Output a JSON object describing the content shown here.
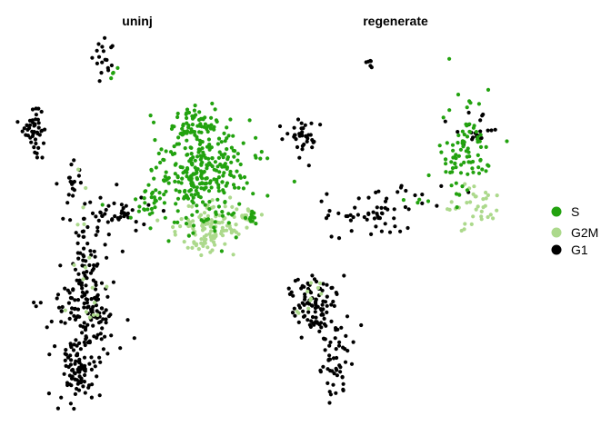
{
  "chart_data": {
    "type": "scatter",
    "title": "",
    "xlabel": "",
    "ylabel": "",
    "axes": "none",
    "grid": false,
    "legend_position": "right",
    "facets": [
      "uninj",
      "regenerate"
    ],
    "series": [
      {
        "name": "S",
        "color": "#22a20f"
      },
      {
        "name": "G2M",
        "color": "#acd98c"
      },
      {
        "name": "G1",
        "color": "#000000"
      }
    ],
    "clusters": [
      {
        "facet": "uninj",
        "series": "G1",
        "cx": 116,
        "cy": 65,
        "sx": 5,
        "sy": 12,
        "n": 18
      },
      {
        "facet": "uninj",
        "series": "S",
        "cx": 127,
        "cy": 75,
        "sx": 4,
        "sy": 6,
        "n": 4
      },
      {
        "facet": "uninj",
        "series": "G1",
        "cx": 38,
        "cy": 147,
        "sx": 7,
        "sy": 12,
        "n": 45
      },
      {
        "facet": "uninj",
        "series": "G1",
        "cx": 80,
        "cy": 200,
        "sx": 6,
        "sy": 12,
        "n": 18
      },
      {
        "facet": "uninj",
        "series": "G1",
        "cx": 125,
        "cy": 235,
        "sx": 20,
        "sy": 12,
        "n": 45
      },
      {
        "facet": "uninj",
        "series": "G1",
        "cx": 95,
        "cy": 290,
        "sx": 14,
        "sy": 25,
        "n": 55
      },
      {
        "facet": "uninj",
        "series": "G1",
        "cx": 92,
        "cy": 345,
        "sx": 18,
        "sy": 22,
        "n": 110
      },
      {
        "facet": "uninj",
        "series": "G1",
        "cx": 85,
        "cy": 405,
        "sx": 12,
        "sy": 20,
        "n": 90
      },
      {
        "facet": "uninj",
        "series": "G1",
        "cx": 40,
        "cy": 335,
        "sx": 2,
        "sy": 4,
        "n": 3
      },
      {
        "facet": "uninj",
        "series": "S",
        "cx": 220,
        "cy": 190,
        "sx": 28,
        "sy": 30,
        "n": 300
      },
      {
        "facet": "uninj",
        "series": "S",
        "cx": 215,
        "cy": 140,
        "sx": 15,
        "sy": 10,
        "n": 60
      },
      {
        "facet": "uninj",
        "series": "S",
        "cx": 160,
        "cy": 228,
        "sx": 8,
        "sy": 10,
        "n": 20
      },
      {
        "facet": "uninj",
        "series": "G2M",
        "cx": 232,
        "cy": 248,
        "sx": 18,
        "sy": 14,
        "n": 120
      },
      {
        "facet": "uninj",
        "series": "G2M",
        "cx": 270,
        "cy": 240,
        "sx": 6,
        "sy": 5,
        "n": 15
      },
      {
        "facet": "uninj",
        "series": "G2M",
        "cx": 100,
        "cy": 330,
        "sx": 15,
        "sy": 20,
        "n": 12
      },
      {
        "facet": "uninj",
        "series": "G2M",
        "cx": 90,
        "cy": 210,
        "sx": 4,
        "sy": 20,
        "n": 5
      },
      {
        "facet": "uninj",
        "series": "S",
        "cx": 276,
        "cy": 242,
        "sx": 3,
        "sy": 5,
        "n": 10
      },
      {
        "facet": "regenerate",
        "series": "G1",
        "cx": 407,
        "cy": 68,
        "sx": 2,
        "sy": 3,
        "n": 6
      },
      {
        "facet": "regenerate",
        "series": "G1",
        "cx": 334,
        "cy": 150,
        "sx": 10,
        "sy": 10,
        "n": 35
      },
      {
        "facet": "regenerate",
        "series": "G1",
        "cx": 410,
        "cy": 230,
        "sx": 30,
        "sy": 15,
        "n": 60
      },
      {
        "facet": "regenerate",
        "series": "G1",
        "cx": 345,
        "cy": 335,
        "sx": 12,
        "sy": 15,
        "n": 90
      },
      {
        "facet": "regenerate",
        "series": "G1",
        "cx": 370,
        "cy": 390,
        "sx": 12,
        "sy": 25,
        "n": 60
      },
      {
        "facet": "regenerate",
        "series": "S",
        "cx": 512,
        "cy": 170,
        "sx": 14,
        "sy": 25,
        "n": 90
      },
      {
        "facet": "regenerate",
        "series": "G1",
        "cx": 520,
        "cy": 145,
        "sx": 12,
        "sy": 8,
        "n": 20
      },
      {
        "facet": "regenerate",
        "series": "G2M",
        "cx": 520,
        "cy": 225,
        "sx": 14,
        "sy": 15,
        "n": 35
      },
      {
        "facet": "regenerate",
        "series": "G2M",
        "cx": 340,
        "cy": 330,
        "sx": 10,
        "sy": 10,
        "n": 10
      },
      {
        "facet": "regenerate",
        "series": "S",
        "cx": 455,
        "cy": 220,
        "sx": 8,
        "sy": 4,
        "n": 4
      }
    ]
  },
  "panels": [
    {
      "title": "uninj"
    },
    {
      "title": "regenerate"
    }
  ],
  "legend": [
    {
      "label": "S",
      "color": "#22a20f"
    },
    {
      "label": "G2M",
      "color": "#acd98c"
    },
    {
      "label": "G1",
      "color": "#000000"
    }
  ]
}
